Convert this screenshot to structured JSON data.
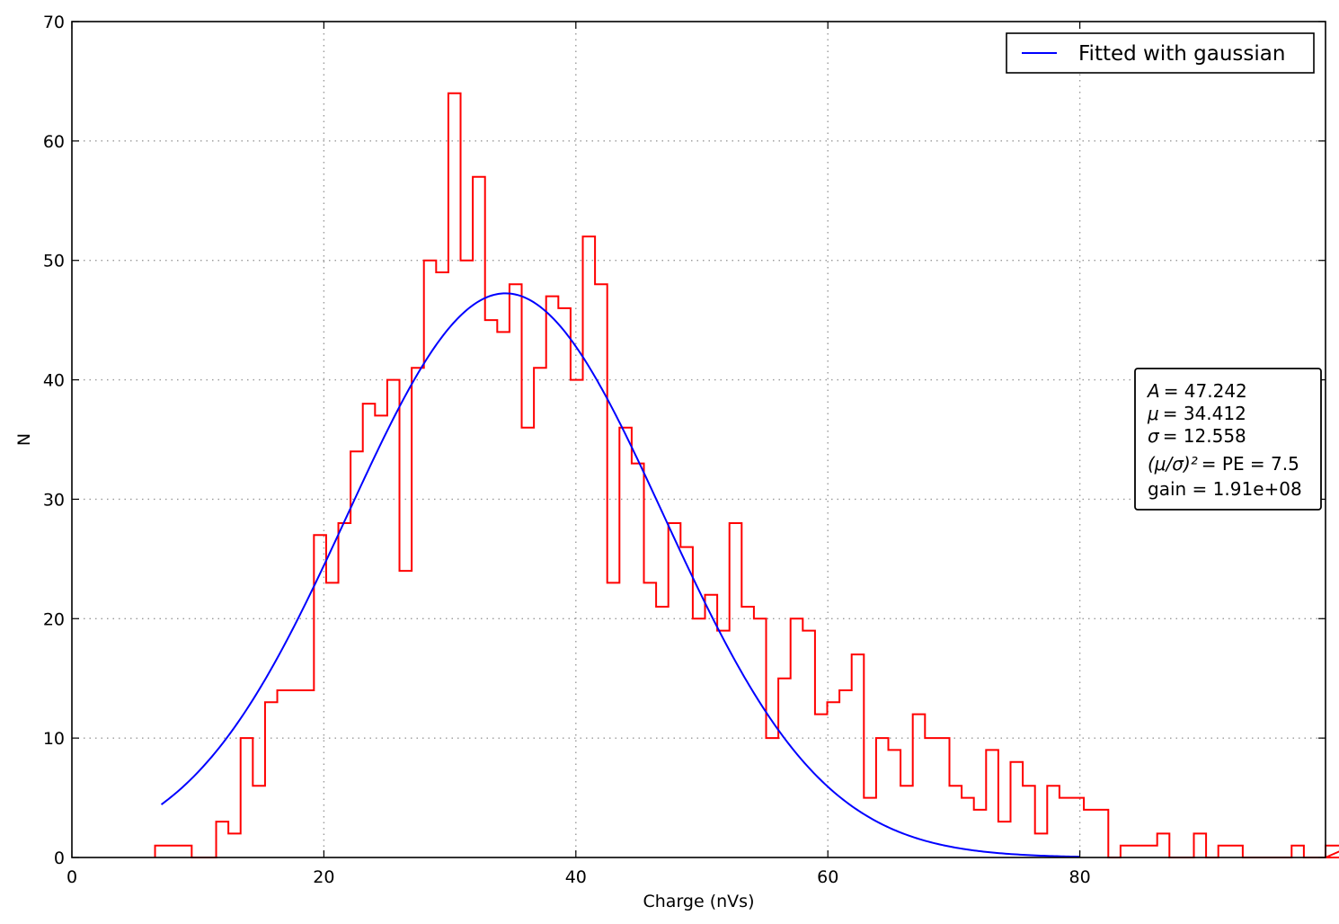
{
  "chart_data": {
    "type": "line",
    "xlabel": "Charge (nVs)",
    "ylabel": "N",
    "xlim": [
      0,
      99.5
    ],
    "ylim": [
      0,
      70
    ],
    "x_ticks": [
      0,
      20,
      40,
      60,
      80
    ],
    "y_ticks": [
      0,
      10,
      20,
      30,
      40,
      50,
      60,
      70
    ],
    "grid": true,
    "legend": {
      "placement": "top-right",
      "entries": [
        "Fitted with gaussian"
      ]
    },
    "colors": {
      "histogram": "#ff0000",
      "fit": "#0000ff"
    },
    "histogram": {
      "bin_width": 0.97,
      "edges_start": 6.6,
      "counts": [
        1,
        1,
        1,
        0,
        0,
        3,
        2,
        10,
        6,
        13,
        14,
        14,
        14,
        27,
        23,
        28,
        34,
        38,
        37,
        40,
        24,
        41,
        50,
        49,
        64,
        50,
        57,
        45,
        44,
        48,
        36,
        41,
        47,
        46,
        40,
        52,
        48,
        23,
        36,
        33,
        23,
        21,
        28,
        26,
        20,
        22,
        19,
        28,
        21,
        20,
        10,
        15,
        20,
        19,
        12,
        13,
        14,
        17,
        5,
        10,
        9,
        6,
        12,
        10,
        10,
        6,
        5,
        4,
        9,
        3,
        8,
        6,
        2,
        6,
        5,
        5,
        4,
        4,
        0,
        1,
        1,
        1,
        2,
        0,
        0,
        2,
        0,
        1,
        1,
        0,
        0,
        0,
        0,
        1,
        0,
        0,
        0,
        0,
        1,
        1
      ]
    },
    "fit": {
      "name": "Fitted with gaussian",
      "A": 47.242,
      "mu": 34.412,
      "sigma": 12.558,
      "x_range": [
        7.1,
        80
      ]
    },
    "annotation": {
      "lines": [
        {
          "lhs": "A",
          "rhs": "= 47.242"
        },
        {
          "lhs": "μ",
          "rhs": "= 34.412"
        },
        {
          "lhs": "σ",
          "rhs": "= 12.558"
        },
        {
          "lhs": "(μ/σ)²",
          "rhs": "= PE = 7.5"
        },
        {
          "lhs": "",
          "rhs": "gain = 1.91e+08"
        }
      ]
    }
  }
}
